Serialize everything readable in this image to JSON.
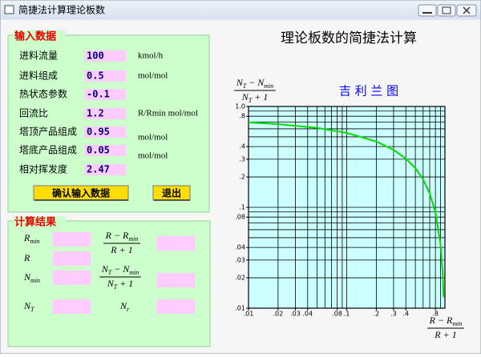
{
  "window": {
    "title": "简捷法计算理论板数"
  },
  "input": {
    "title": "输入数据",
    "rows": [
      {
        "label": "进料流量",
        "value": "100",
        "unit": "kmol/h"
      },
      {
        "label": "进料组成",
        "value": "0.5",
        "unit": "mol/mol"
      },
      {
        "label": "热状态参数",
        "value": "-0.1"
      },
      {
        "label": "回流比",
        "value": "1.2",
        "unit": "R/Rmin mol/mol"
      },
      {
        "label": "塔顶产品组成",
        "value": "0.95",
        "unit": "mol/mol"
      },
      {
        "label": "塔底产品组成",
        "value": "0.05",
        "unit": "mol/mol"
      },
      {
        "label": "相对挥发度",
        "value": "2.47"
      }
    ],
    "buttons": [
      "确认输入数据",
      "退出"
    ]
  },
  "results": {
    "title": "计算结果",
    "items": [
      {
        "terms": [
          {
            "t": "R",
            "sub": "min"
          }
        ]
      },
      {
        "terms": [
          {
            "t": "R"
          }
        ]
      },
      {
        "terms": [
          {
            "t": "N",
            "sub": "min"
          }
        ]
      },
      {
        "terms": [
          {
            "t": "N",
            "sub": "T"
          }
        ]
      },
      {
        "num": [
          {
            "t": "R − R",
            "sub": "min"
          }
        ],
        "den": [
          {
            "t": "R + 1"
          }
        ]
      },
      {
        "num": [
          {
            "t": "N",
            "sub": "T"
          },
          {
            "t": " − N",
            "sub": "min"
          }
        ],
        "den": [
          {
            "t": "N",
            "sub": "T"
          },
          {
            "t": " + 1"
          }
        ]
      },
      {
        "terms": [
          {
            "t": "N",
            "sub": "r"
          }
        ]
      }
    ]
  },
  "header": {
    "title": "理论板数的简捷法计算"
  },
  "chart": {
    "type": "line",
    "title": "吉 利 兰 图",
    "y_label": {
      "num": [
        {
          "t": "N",
          "sub": "T"
        },
        {
          "t": " − N",
          "sub": "min"
        }
      ],
      "den": [
        {
          "t": "N",
          "sub": "T"
        },
        {
          "t": " + 1"
        }
      ]
    },
    "x_label": {
      "num": [
        {
          "t": "R − R",
          "sub": "min"
        }
      ],
      "den": [
        {
          "t": "R + 1"
        }
      ]
    },
    "log_x": true,
    "log_y": true,
    "xlim": [
      0.01,
      1
    ],
    "ylim": [
      0.01,
      1
    ],
    "xticks": [
      {
        "value": 0.01,
        "label": ".01"
      },
      {
        "value": 0.02,
        "label": ".02"
      },
      {
        "value": 0.03,
        "label": ".03"
      },
      {
        "value": 0.04,
        "label": ".04"
      },
      {
        "value": 0.08,
        "label": ".08"
      },
      {
        "value": 0.1,
        "label": ".1"
      },
      {
        "value": 0.2,
        "label": ".2"
      },
      {
        "value": 0.3,
        "label": ".3"
      },
      {
        "value": 0.4,
        "label": ".4"
      },
      {
        "value": 0.8,
        "label": ".8"
      }
    ],
    "yticks": [
      {
        "value": 1,
        "label": "1.0"
      },
      {
        "value": 0.8,
        "label": ".8"
      },
      {
        "value": 0.4,
        "label": ".4"
      },
      {
        "value": 0.3,
        "label": ".3"
      },
      {
        "value": 0.2,
        "label": ".2"
      },
      {
        "value": 0.1,
        "label": ".1"
      },
      {
        "value": 0.08,
        "label": ".08"
      },
      {
        "value": 0.04,
        "label": ".04"
      },
      {
        "value": 0.03,
        "label": ".03"
      },
      {
        "value": 0.02,
        "label": ".02"
      },
      {
        "value": 0.01,
        "label": ".01"
      }
    ],
    "grid": [
      0.01,
      0.02,
      0.03,
      0.04,
      0.05,
      0.06,
      0.07,
      0.08,
      0.09,
      0.1,
      0.2,
      0.3,
      0.4,
      0.5,
      0.6,
      0.7,
      0.8,
      0.9,
      1
    ],
    "background": "#ccffff",
    "x": [
      0.01,
      0.02,
      0.05,
      0.1,
      0.2,
      0.3,
      0.4,
      0.5,
      0.6,
      0.7,
      0.8,
      0.9,
      0.95,
      0.97
    ],
    "series": [
      {
        "color": "#00dd00",
        "values": [
          0.695,
          0.668,
          0.613,
          0.547,
          0.449,
          0.371,
          0.304,
          0.244,
          0.189,
          0.137,
          0.089,
          0.0435,
          0.0215,
          0.0128
        ]
      }
    ]
  }
}
